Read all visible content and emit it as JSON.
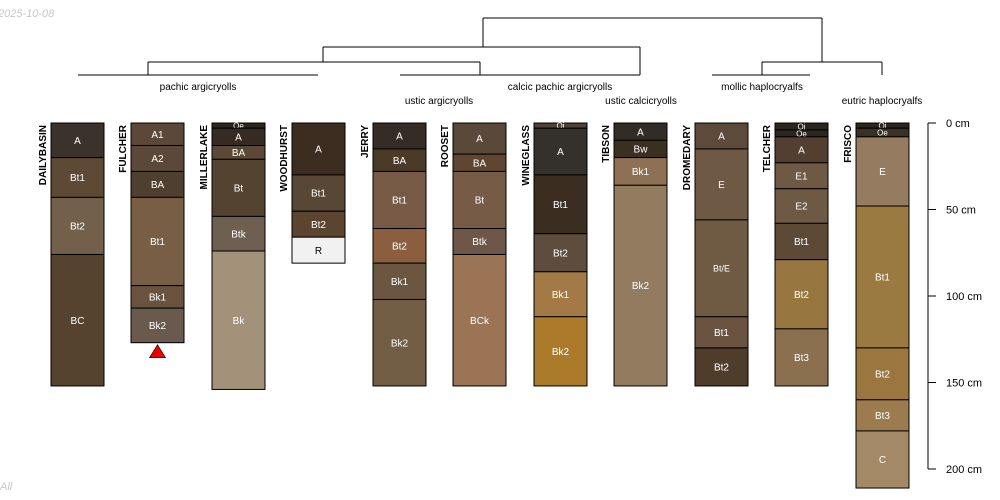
{
  "date_stamp": "2025-10-08",
  "footer_stamp": "All",
  "depth_axis": {
    "ticks": [
      {
        "value": 0,
        "label": "0 cm"
      },
      {
        "value": 50,
        "label": "50 cm"
      },
      {
        "value": 100,
        "label": "100 cm"
      },
      {
        "value": 150,
        "label": "150 cm"
      },
      {
        "value": 200,
        "label": "200 cm"
      }
    ],
    "max": 200
  },
  "groups": [
    {
      "label": "pachic argicryolls"
    },
    {
      "label": "ustic argicryolls"
    },
    {
      "label": "calcic pachic argicryolls"
    },
    {
      "label": "ustic calcicryolls"
    },
    {
      "label": "mollic haplocryalfs"
    },
    {
      "label": "eutric haplocryalfs"
    }
  ],
  "profiles": [
    {
      "name": "DAILYBASIN",
      "horizons": [
        {
          "name": "A",
          "top": 0,
          "bottom": 20,
          "color": "#3a322b"
        },
        {
          "name": "Bt1",
          "top": 20,
          "bottom": 43,
          "color": "#5e4935"
        },
        {
          "name": "Bt2",
          "top": 43,
          "bottom": 76,
          "color": "#72604a"
        },
        {
          "name": "BC",
          "top": 76,
          "bottom": 152,
          "color": "#554330"
        }
      ]
    },
    {
      "name": "FULCHER",
      "horizons": [
        {
          "name": "A1",
          "top": 0,
          "bottom": 13,
          "color": "#5c4838"
        },
        {
          "name": "A2",
          "top": 13,
          "bottom": 28,
          "color": "#5c4838"
        },
        {
          "name": "BA",
          "top": 28,
          "bottom": 43,
          "color": "#4f3f2e"
        },
        {
          "name": "Bt1",
          "top": 43,
          "bottom": 94,
          "color": "#775e45"
        },
        {
          "name": "Bk1",
          "top": 94,
          "bottom": 107,
          "color": "#6a5240"
        },
        {
          "name": "Bk2",
          "top": 107,
          "bottom": 127,
          "color": "#6a5a4e"
        }
      ]
    },
    {
      "name": "MILLERLAKE",
      "horizons": [
        {
          "name": "Oe",
          "top": 0,
          "bottom": 3,
          "color": "#2c2620"
        },
        {
          "name": "A",
          "top": 3,
          "bottom": 13,
          "color": "#352b22"
        },
        {
          "name": "BA",
          "top": 13,
          "bottom": 21,
          "color": "#5b4836"
        },
        {
          "name": "Bt",
          "top": 21,
          "bottom": 54,
          "color": "#534330"
        },
        {
          "name": "Btk",
          "top": 54,
          "bottom": 74,
          "color": "#6f5f50"
        },
        {
          "name": "Bk",
          "top": 74,
          "bottom": 154,
          "color": "#a39179"
        }
      ]
    },
    {
      "name": "WOODHURST",
      "horizons": [
        {
          "name": "A",
          "top": 0,
          "bottom": 30,
          "color": "#3c2d20"
        },
        {
          "name": "Bt1",
          "top": 30,
          "bottom": 51,
          "color": "#594735"
        },
        {
          "name": "Bt2",
          "top": 51,
          "bottom": 66,
          "color": "#5c4530"
        },
        {
          "name": "R",
          "top": 66,
          "bottom": 81,
          "color": "#f1f1f1"
        }
      ]
    },
    {
      "name": "JERRY",
      "horizons": [
        {
          "name": "A",
          "top": 0,
          "bottom": 15,
          "color": "#352d25"
        },
        {
          "name": "BA",
          "top": 15,
          "bottom": 28,
          "color": "#4c3a28"
        },
        {
          "name": "Bt1",
          "top": 28,
          "bottom": 61,
          "color": "#775a46"
        },
        {
          "name": "Bt2",
          "top": 61,
          "bottom": 81,
          "color": "#8a5e3e"
        },
        {
          "name": "Bk1",
          "top": 81,
          "bottom": 102,
          "color": "#6a5641"
        },
        {
          "name": "Bk2",
          "top": 102,
          "bottom": 152,
          "color": "#725d45"
        }
      ]
    },
    {
      "name": "ROOSET",
      "horizons": [
        {
          "name": "A",
          "top": 0,
          "bottom": 18,
          "color": "#5a4838"
        },
        {
          "name": "BA",
          "top": 18,
          "bottom": 28,
          "color": "#5e4630"
        },
        {
          "name": "Bt",
          "top": 28,
          "bottom": 61,
          "color": "#765b46"
        },
        {
          "name": "Btk",
          "top": 61,
          "bottom": 76,
          "color": "#6e5748"
        },
        {
          "name": "BCk",
          "top": 76,
          "bottom": 152,
          "color": "#9a7455"
        }
      ]
    },
    {
      "name": "WINEGLASS",
      "horizons": [
        {
          "name": "Oi",
          "top": 0,
          "bottom": 3,
          "color": "#4d4237"
        },
        {
          "name": "A",
          "top": 3,
          "bottom": 30,
          "color": "#34302b"
        },
        {
          "name": "Bt1",
          "top": 30,
          "bottom": 64,
          "color": "#3b2e21"
        },
        {
          "name": "Bt2",
          "top": 64,
          "bottom": 86,
          "color": "#5e4c3c"
        },
        {
          "name": "Bk1",
          "top": 86,
          "bottom": 112,
          "color": "#a37a45"
        },
        {
          "name": "Bk2",
          "top": 112,
          "bottom": 152,
          "color": "#ab7b2b"
        }
      ]
    },
    {
      "name": "TIBSON",
      "horizons": [
        {
          "name": "A",
          "top": 0,
          "bottom": 10,
          "color": "#322c26"
        },
        {
          "name": "Bw",
          "top": 10,
          "bottom": 20,
          "color": "#3b2f22"
        },
        {
          "name": "Bk1",
          "top": 20,
          "bottom": 36,
          "color": "#8e7154"
        },
        {
          "name": "Bk2",
          "top": 36,
          "bottom": 152,
          "color": "#927b5e"
        }
      ]
    },
    {
      "name": "DROMEDARY",
      "horizons": [
        {
          "name": "A",
          "top": 0,
          "bottom": 15,
          "color": "#5c4a3a"
        },
        {
          "name": "E",
          "top": 15,
          "bottom": 56,
          "color": "#6e5a44"
        },
        {
          "name": "Bt/E",
          "top": 56,
          "bottom": 112,
          "color": "#6f5a43"
        },
        {
          "name": "Bt1",
          "top": 112,
          "bottom": 130,
          "color": "#6a5441"
        },
        {
          "name": "Bt2",
          "top": 130,
          "bottom": 152,
          "color": "#4f3d2c"
        }
      ]
    },
    {
      "name": "TELCHER",
      "horizons": [
        {
          "name": "Oi",
          "top": 0,
          "bottom": 4,
          "color": "#2c2620"
        },
        {
          "name": "Oe",
          "top": 4,
          "bottom": 8,
          "color": "#2c2620"
        },
        {
          "name": "A",
          "top": 8,
          "bottom": 23,
          "color": "#523f2f"
        },
        {
          "name": "E1",
          "top": 23,
          "bottom": 38,
          "color": "#6e5a44"
        },
        {
          "name": "E2",
          "top": 38,
          "bottom": 58,
          "color": "#6e5a44"
        },
        {
          "name": "Bt1",
          "top": 58,
          "bottom": 79,
          "color": "#5c4936"
        },
        {
          "name": "Bt2",
          "top": 79,
          "bottom": 119,
          "color": "#987640"
        },
        {
          "name": "Bt3",
          "top": 119,
          "bottom": 152,
          "color": "#8a704f"
        }
      ]
    },
    {
      "name": "FRISCO",
      "horizons": [
        {
          "name": "Oi",
          "top": 0,
          "bottom": 3,
          "color": "#2c2620"
        },
        {
          "name": "Oe",
          "top": 3,
          "bottom": 8,
          "color": "#3a3026"
        },
        {
          "name": "E",
          "top": 8,
          "bottom": 48,
          "color": "#957b60"
        },
        {
          "name": "Bt1",
          "top": 48,
          "bottom": 130,
          "color": "#9a7a41"
        },
        {
          "name": "Bt2",
          "top": 130,
          "bottom": 160,
          "color": "#9b773f"
        },
        {
          "name": "Bt3",
          "top": 160,
          "bottom": 178,
          "color": "#9c7b4e"
        },
        {
          "name": "C",
          "top": 178,
          "bottom": 211,
          "color": "#a48967"
        }
      ]
    }
  ]
}
